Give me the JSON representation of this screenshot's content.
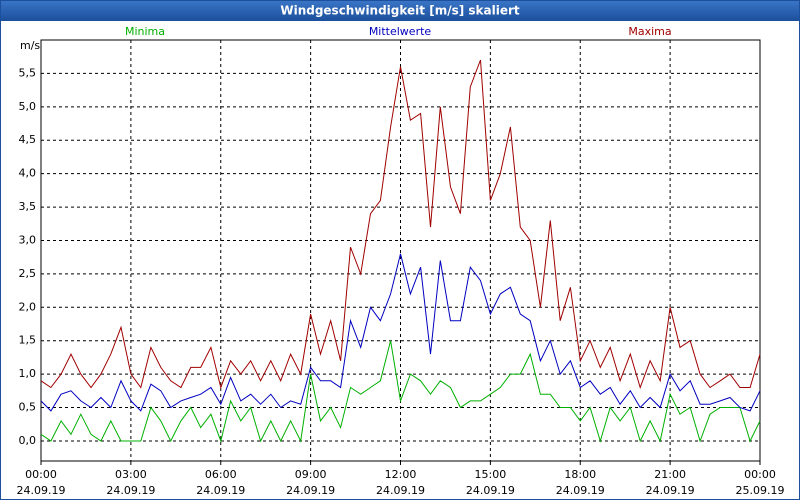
{
  "chart_data": {
    "type": "line",
    "title": "Windgeschwindigkeit [m/s] skaliert",
    "ylabel": "m/s",
    "x": [
      0,
      0.33,
      0.67,
      1,
      1.33,
      1.67,
      2,
      2.33,
      2.67,
      3,
      3.33,
      3.67,
      4,
      4.33,
      4.67,
      5,
      5.33,
      5.67,
      6,
      6.33,
      6.67,
      7,
      7.33,
      7.67,
      8,
      8.33,
      8.67,
      9,
      9.33,
      9.67,
      10,
      10.33,
      10.67,
      11,
      11.33,
      11.67,
      12,
      12.33,
      12.67,
      13,
      13.33,
      13.67,
      14,
      14.33,
      14.67,
      15,
      15.33,
      15.67,
      16,
      16.33,
      16.67,
      17,
      17.33,
      17.67,
      18,
      18.33,
      18.67,
      19,
      19.33,
      19.67,
      20,
      20.33,
      20.67,
      21,
      21.33,
      21.67,
      22,
      22.33,
      22.67,
      23,
      23.33,
      23.67,
      24
    ],
    "series": [
      {
        "name": "Minima",
        "color": "#00b000",
        "values": [
          0.1,
          0.0,
          0.3,
          0.1,
          0.4,
          0.1,
          0.0,
          0.3,
          0.0,
          0.0,
          0.0,
          0.5,
          0.3,
          0.0,
          0.3,
          0.5,
          0.2,
          0.4,
          0.0,
          0.6,
          0.3,
          0.5,
          0.0,
          0.3,
          0.0,
          0.3,
          0.0,
          1.0,
          0.3,
          0.5,
          0.2,
          0.8,
          0.7,
          0.8,
          0.9,
          1.5,
          0.6,
          1.0,
          0.9,
          0.7,
          0.9,
          0.8,
          0.5,
          0.6,
          0.6,
          0.7,
          0.8,
          1.0,
          1.0,
          1.3,
          0.7,
          0.7,
          0.5,
          0.5,
          0.3,
          0.5,
          0.0,
          0.5,
          0.3,
          0.5,
          0.0,
          0.3,
          0.0,
          0.7,
          0.4,
          0.5,
          0.0,
          0.4,
          0.5,
          0.5,
          0.5,
          0.0,
          0.3
        ]
      },
      {
        "name": "Mittelwerte",
        "color": "#0000c0",
        "values": [
          0.6,
          0.45,
          0.7,
          0.75,
          0.6,
          0.5,
          0.65,
          0.5,
          0.9,
          0.6,
          0.45,
          0.85,
          0.75,
          0.5,
          0.6,
          0.65,
          0.7,
          0.8,
          0.55,
          0.95,
          0.6,
          0.7,
          0.55,
          0.7,
          0.5,
          0.6,
          0.55,
          1.1,
          0.9,
          0.9,
          0.8,
          1.8,
          1.4,
          2.0,
          1.8,
          2.2,
          2.8,
          2.2,
          2.6,
          1.3,
          2.7,
          1.8,
          1.8,
          2.6,
          2.4,
          1.9,
          2.2,
          2.3,
          1.9,
          1.8,
          1.2,
          1.5,
          1.0,
          1.2,
          0.8,
          0.9,
          0.7,
          0.8,
          0.55,
          0.75,
          0.5,
          0.65,
          0.5,
          1.0,
          0.75,
          0.9,
          0.55,
          0.55,
          0.6,
          0.65,
          0.5,
          0.45,
          0.75
        ]
      },
      {
        "name": "Maxima",
        "color": "#a00000",
        "values": [
          0.9,
          0.8,
          1.0,
          1.3,
          1.0,
          0.8,
          1.0,
          1.3,
          1.7,
          1.0,
          0.8,
          1.4,
          1.1,
          0.9,
          0.8,
          1.1,
          1.1,
          1.4,
          0.8,
          1.2,
          1.0,
          1.2,
          0.9,
          1.2,
          0.9,
          1.3,
          1.0,
          1.9,
          1.3,
          1.8,
          1.2,
          2.9,
          2.5,
          3.4,
          3.6,
          4.7,
          5.6,
          4.8,
          4.9,
          3.2,
          5.0,
          3.8,
          3.4,
          5.3,
          5.7,
          3.6,
          4.0,
          4.7,
          3.2,
          3.0,
          2.0,
          3.3,
          1.8,
          2.3,
          1.2,
          1.5,
          1.1,
          1.4,
          0.9,
          1.3,
          0.8,
          1.2,
          0.9,
          2.0,
          1.4,
          1.5,
          1.0,
          0.8,
          0.9,
          1.0,
          0.8,
          0.8,
          1.3
        ]
      }
    ],
    "xlim": [
      0,
      24
    ],
    "xticks": [
      {
        "value": 0,
        "label": "00:00"
      },
      {
        "value": 3,
        "label": "03:00"
      },
      {
        "value": 6,
        "label": "06:00"
      },
      {
        "value": 9,
        "label": "09:00"
      },
      {
        "value": 12,
        "label": "12:00"
      },
      {
        "value": 15,
        "label": "15:00"
      },
      {
        "value": 18,
        "label": "18:00"
      },
      {
        "value": 21,
        "label": "21:00"
      },
      {
        "value": 24,
        "label": "00:00"
      }
    ],
    "xtick_dates": [
      "24.09.19",
      "24.09.19",
      "24.09.19",
      "24.09.19",
      "24.09.19",
      "24.09.19",
      "24.09.19",
      "24.09.19",
      "25.09.19"
    ],
    "ylim": [
      -0.3,
      6.0
    ],
    "yticks": [
      {
        "value": 0,
        "label": "0,0"
      },
      {
        "value": 0.5,
        "label": "0,5"
      },
      {
        "value": 1,
        "label": "1,0"
      },
      {
        "value": 1.5,
        "label": "1,5"
      },
      {
        "value": 2,
        "label": "2,0"
      },
      {
        "value": 2.5,
        "label": "2,5"
      },
      {
        "value": 3,
        "label": "3,0"
      },
      {
        "value": 3.5,
        "label": "3,5"
      },
      {
        "value": 4,
        "label": "4,0"
      },
      {
        "value": 4.5,
        "label": "4,5"
      },
      {
        "value": 5,
        "label": "5,0"
      },
      {
        "value": 5.5,
        "label": "5,5"
      }
    ],
    "grid": true
  }
}
